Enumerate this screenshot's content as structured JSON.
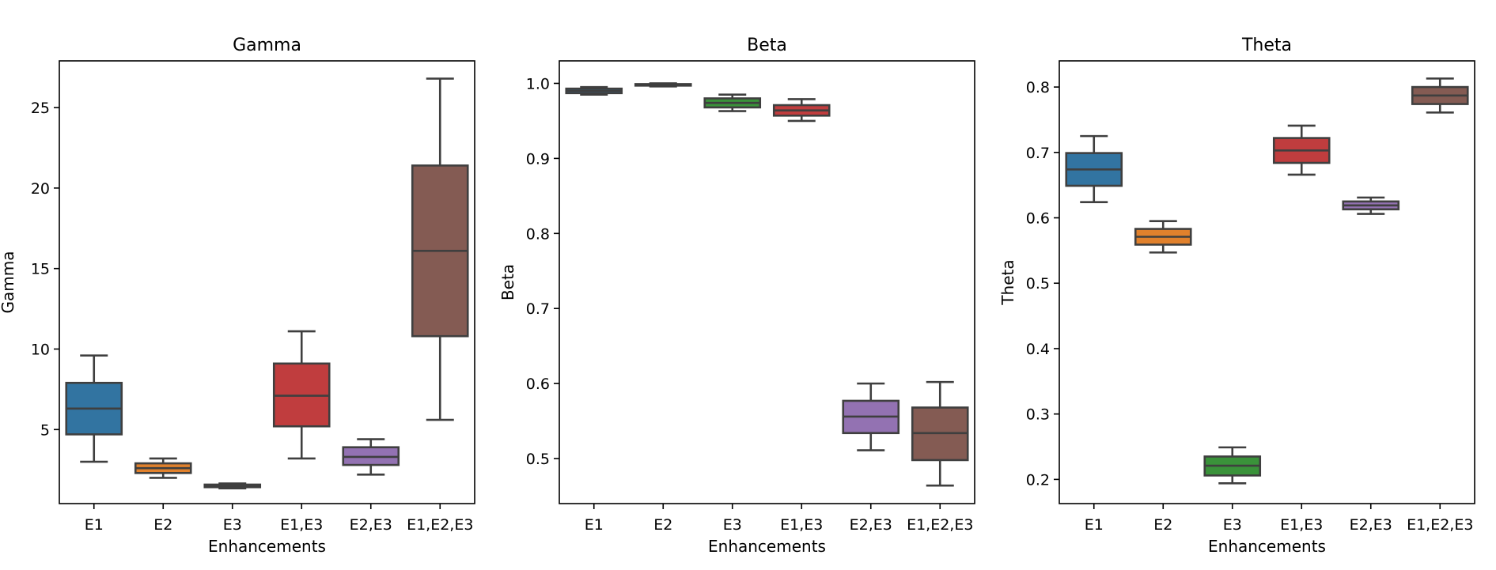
{
  "chart_data": [
    {
      "type": "box",
      "title": "Gamma",
      "xlabel": "Enhancements",
      "ylabel": "Gamma",
      "categories": [
        "E1",
        "E2",
        "E3",
        "E1,E3",
        "E2,E3",
        "E1,E2,E3"
      ],
      "ylim": [
        0.4,
        27.9
      ],
      "yticks": [
        5,
        10,
        15,
        20,
        25
      ],
      "ytick_labels": [
        "5",
        "10",
        "15",
        "20",
        "25"
      ],
      "colors": [
        "#3274a1",
        "#e1812c",
        "#3a923a",
        "#c03d3e",
        "#9372b2",
        "#845b53"
      ],
      "boxes": [
        {
          "min": 3.0,
          "q1": 4.7,
          "median": 6.3,
          "q3": 7.9,
          "max": 9.6
        },
        {
          "min": 2.0,
          "q1": 2.3,
          "median": 2.6,
          "q3": 2.9,
          "max": 3.2
        },
        {
          "min": 1.35,
          "q1": 1.42,
          "median": 1.5,
          "q3": 1.58,
          "max": 1.65
        },
        {
          "min": 3.2,
          "q1": 5.2,
          "median": 7.1,
          "q3": 9.1,
          "max": 11.1
        },
        {
          "min": 2.2,
          "q1": 2.8,
          "median": 3.3,
          "q3": 3.9,
          "max": 4.4
        },
        {
          "min": 5.6,
          "q1": 10.8,
          "median": 16.1,
          "q3": 21.4,
          "max": 26.8
        }
      ]
    },
    {
      "type": "box",
      "title": "Beta",
      "xlabel": "Enhancements",
      "ylabel": "Beta",
      "categories": [
        "E1",
        "E2",
        "E3",
        "E1,E3",
        "E2,E3",
        "E1,E2,E3"
      ],
      "ylim": [
        0.44,
        1.03
      ],
      "yticks": [
        0.5,
        0.6,
        0.7,
        0.8,
        0.9,
        1.0
      ],
      "ytick_labels": [
        "0.5",
        "0.6",
        "0.7",
        "0.8",
        "0.9",
        "1.0"
      ],
      "colors": [
        "#3274a1",
        "#e1812c",
        "#3a923a",
        "#c03d3e",
        "#9372b2",
        "#845b53"
      ],
      "boxes": [
        {
          "min": 0.985,
          "q1": 0.987,
          "median": 0.99,
          "q3": 0.993,
          "max": 0.995
        },
        {
          "min": 0.996,
          "q1": 0.997,
          "median": 0.998,
          "q3": 0.999,
          "max": 1.0
        },
        {
          "min": 0.963,
          "q1": 0.968,
          "median": 0.974,
          "q3": 0.98,
          "max": 0.985
        },
        {
          "min": 0.95,
          "q1": 0.957,
          "median": 0.964,
          "q3": 0.971,
          "max": 0.979
        },
        {
          "min": 0.511,
          "q1": 0.534,
          "median": 0.556,
          "q3": 0.577,
          "max": 0.6
        },
        {
          "min": 0.464,
          "q1": 0.498,
          "median": 0.534,
          "q3": 0.568,
          "max": 0.602
        }
      ]
    },
    {
      "type": "box",
      "title": "Theta",
      "xlabel": "Enhancements",
      "ylabel": "Theta",
      "categories": [
        "E1",
        "E2",
        "E3",
        "E1,E3",
        "E2,E3",
        "E1,E2,E3"
      ],
      "ylim": [
        0.163,
        0.84
      ],
      "yticks": [
        0.2,
        0.3,
        0.4,
        0.5,
        0.6,
        0.7,
        0.8
      ],
      "ytick_labels": [
        "0.2",
        "0.3",
        "0.4",
        "0.5",
        "0.6",
        "0.7",
        "0.8"
      ],
      "colors": [
        "#3274a1",
        "#e1812c",
        "#3a923a",
        "#c03d3e",
        "#9372b2",
        "#845b53"
      ],
      "boxes": [
        {
          "min": 0.624,
          "q1": 0.649,
          "median": 0.674,
          "q3": 0.699,
          "max": 0.725
        },
        {
          "min": 0.547,
          "q1": 0.559,
          "median": 0.571,
          "q3": 0.583,
          "max": 0.595
        },
        {
          "min": 0.194,
          "q1": 0.206,
          "median": 0.221,
          "q3": 0.235,
          "max": 0.249
        },
        {
          "min": 0.666,
          "q1": 0.684,
          "median": 0.703,
          "q3": 0.722,
          "max": 0.741
        },
        {
          "min": 0.606,
          "q1": 0.613,
          "median": 0.619,
          "q3": 0.625,
          "max": 0.631
        },
        {
          "min": 0.761,
          "q1": 0.774,
          "median": 0.787,
          "q3": 0.8,
          "max": 0.813
        }
      ]
    }
  ]
}
